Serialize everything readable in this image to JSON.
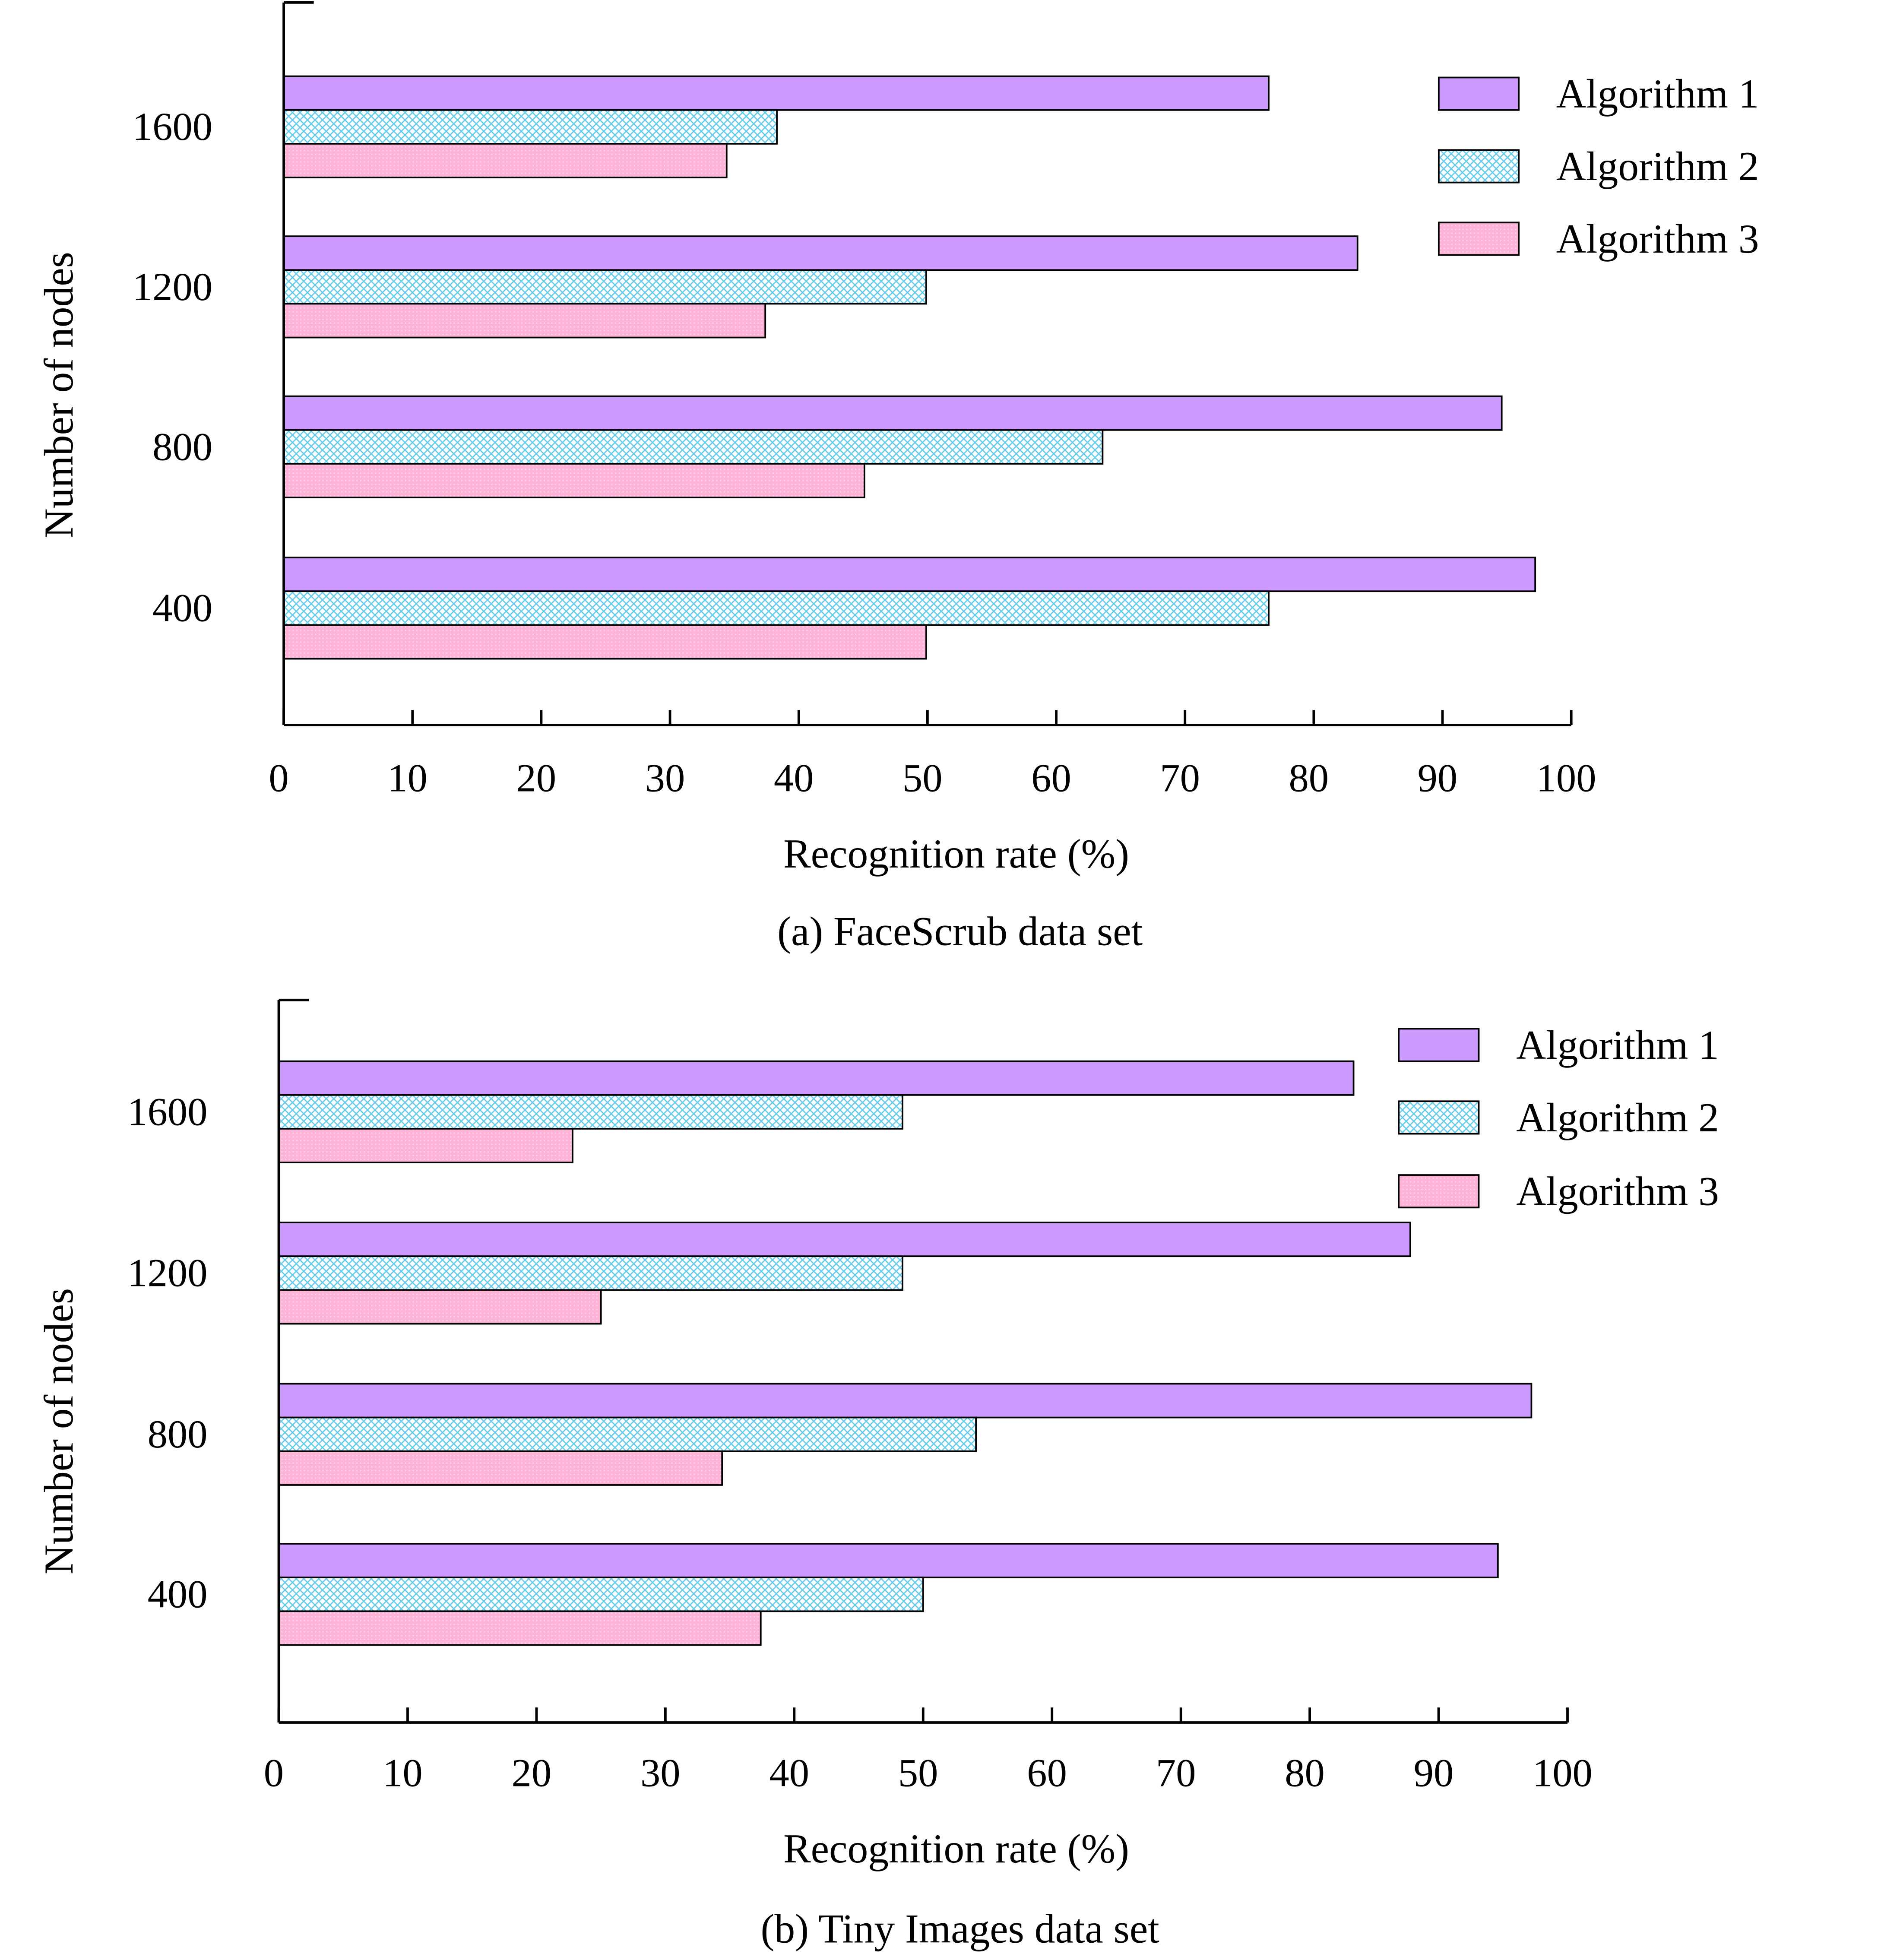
{
  "colors": {
    "algorithm_1": "#CC99FF",
    "algorithm_2": "#66CCEE",
    "algorithm_3": "#FFB3D9"
  },
  "chart_data": [
    {
      "type": "bar",
      "orientation": "horizontal",
      "title": "(a) FaceScrub data set",
      "xlabel": "Recognition rate (%)",
      "ylabel": "Number of nodes",
      "xlim": [
        0,
        100
      ],
      "xticks": [
        "0",
        "10",
        "20",
        "30",
        "40",
        "50",
        "60",
        "70",
        "80",
        "90",
        "100"
      ],
      "categories": [
        "400",
        "800",
        "1200",
        "1600"
      ],
      "legend_position": "top-right",
      "series": [
        {
          "name": "Algorithm 1",
          "values": [
            97.2,
            94.6,
            83.4,
            76.5
          ]
        },
        {
          "name": "Algorithm 2",
          "values": [
            76.5,
            63.6,
            49.9,
            38.3
          ]
        },
        {
          "name": "Algorithm 3",
          "values": [
            49.9,
            45.1,
            37.4,
            34.4
          ]
        }
      ]
    },
    {
      "type": "bar",
      "orientation": "horizontal",
      "title": "(b) Tiny Images data set",
      "xlabel": "Recognition rate (%)",
      "ylabel": "Number of nodes",
      "xlim": [
        0,
        100
      ],
      "xticks": [
        "0",
        "10",
        "20",
        "30",
        "40",
        "50",
        "60",
        "70",
        "80",
        "90",
        "100"
      ],
      "categories": [
        "400",
        "800",
        "1200",
        "1600"
      ],
      "legend_position": "top-right",
      "series": [
        {
          "name": "Algorithm 1",
          "values": [
            94.6,
            97.2,
            87.8,
            83.4
          ]
        },
        {
          "name": "Algorithm 2",
          "values": [
            50.0,
            54.1,
            48.4,
            48.4
          ]
        },
        {
          "name": "Algorithm 3",
          "values": [
            37.4,
            34.4,
            25.0,
            22.8
          ]
        }
      ]
    }
  ]
}
